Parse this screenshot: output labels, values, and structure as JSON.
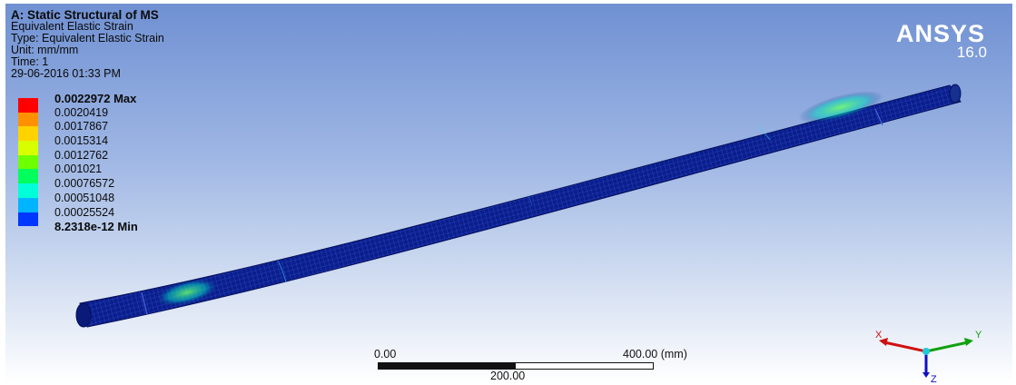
{
  "header": {
    "title": "A: Static Structural of MS",
    "result_name": "Equivalent Elastic Strain",
    "type": "Type: Equivalent Elastic Strain",
    "unit": "Unit: mm/mm",
    "time": "Time: 1",
    "timestamp": "29-06-2016 01:33 PM"
  },
  "legend": {
    "max_label": "0.0022972 Max",
    "min_label": "8.2318e-12 Min",
    "levels": [
      "0.0020419",
      "0.0017867",
      "0.0015314",
      "0.0012762",
      "0.001021",
      "0.00076572",
      "0.00051048",
      "0.00025524"
    ],
    "colors": [
      "#ff0000",
      "#ff9100",
      "#ffd200",
      "#d7ff00",
      "#6eff00",
      "#00ff5c",
      "#00ffd9",
      "#00b4ff",
      "#0037ff"
    ]
  },
  "brand": {
    "name": "ANSYS",
    "version": "16.0"
  },
  "scale_bar": {
    "start": "0.00",
    "end": "400.00 (mm)",
    "mid": "200.00"
  },
  "triad": {
    "x": "X",
    "y": "Y",
    "z": "Z"
  },
  "colors": {
    "mesh": "#0a1e8c",
    "mesh_lines": "#3a55d8",
    "background_top": "#6f90d2",
    "background_bottom": "#ffffff"
  }
}
